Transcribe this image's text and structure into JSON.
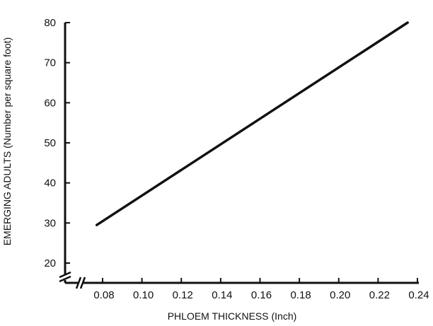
{
  "chart_data": {
    "type": "line",
    "xlabel": "PHLOEM THICKNESS (Inch)",
    "ylabel": "EMERGING ADULTS (Number per square foot)",
    "xlim": [
      0.06,
      0.24
    ],
    "ylim": [
      20,
      80
    ],
    "x_ticks": [
      "0.08",
      "0.10",
      "0.12",
      "0.14",
      "0.16",
      "0.18",
      "0.20",
      "0.22",
      "0.24"
    ],
    "y_ticks": [
      "20",
      "30",
      "40",
      "50",
      "60",
      "70",
      "80"
    ],
    "x_axis_break": true,
    "y_axis_break": true,
    "grid": false,
    "series": [
      {
        "x": [
          0.077,
          0.235
        ],
        "y": [
          29.5,
          80
        ],
        "color": "#111111"
      }
    ]
  }
}
